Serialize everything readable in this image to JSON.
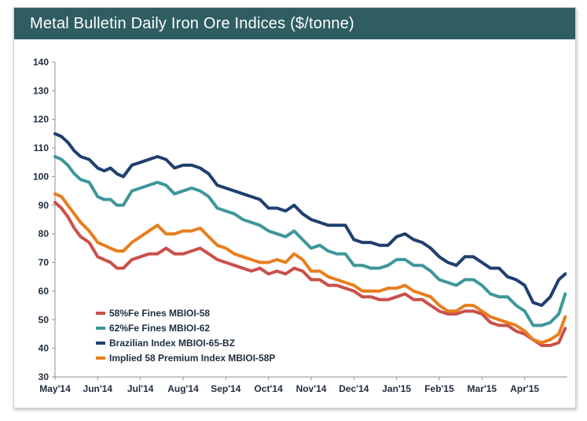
{
  "chart_data": {
    "type": "line",
    "title": "Metal Bulletin Daily Iron Ore Indices ($/tonne)",
    "xlabel": "",
    "ylabel": "",
    "ylim": [
      30,
      140
    ],
    "yticks": [
      30,
      40,
      50,
      60,
      70,
      80,
      90,
      100,
      110,
      120,
      130,
      140
    ],
    "xlim": [
      0,
      12.0
    ],
    "x_tick_labels": [
      "May'14",
      "Jun'14",
      "Jul'14",
      "Aug'14",
      "Sep'14",
      "Oct'14",
      "Nov'14",
      "Dec'14",
      "Jan'15",
      "Feb'15",
      "Mar'15",
      "Apr'15"
    ],
    "x_tick_positions": [
      0,
      1,
      2,
      3,
      4,
      5,
      6,
      7,
      8,
      9,
      10,
      11
    ],
    "grid": false,
    "legend_position": "bottom-left",
    "series": [
      {
        "name": "58%Fe Fines MBIOI-58",
        "color": "#c9504b",
        "x": [
          0,
          0.15,
          0.3,
          0.45,
          0.6,
          0.8,
          1.0,
          1.15,
          1.3,
          1.45,
          1.6,
          1.8,
          2.0,
          2.2,
          2.4,
          2.6,
          2.8,
          3.0,
          3.2,
          3.4,
          3.6,
          3.8,
          4.0,
          4.2,
          4.4,
          4.6,
          4.8,
          5.0,
          5.2,
          5.4,
          5.6,
          5.8,
          6.0,
          6.2,
          6.4,
          6.6,
          6.8,
          7.0,
          7.2,
          7.4,
          7.6,
          7.8,
          8.0,
          8.2,
          8.4,
          8.6,
          8.8,
          9.0,
          9.2,
          9.4,
          9.6,
          9.8,
          10.0,
          10.2,
          10.4,
          10.6,
          10.8,
          11.0,
          11.2,
          11.4,
          11.6,
          11.8,
          11.95
        ],
        "y": [
          91,
          89,
          86,
          82,
          79,
          77,
          72,
          71,
          70,
          68,
          68,
          71,
          72,
          73,
          73,
          75,
          73,
          73,
          74,
          75,
          73,
          71,
          70,
          69,
          68,
          67,
          68,
          66,
          67,
          66,
          68,
          67,
          64,
          64,
          62,
          62,
          61,
          60,
          58,
          58,
          57,
          57,
          58,
          59,
          57,
          57,
          55,
          53,
          52,
          52,
          53,
          53,
          52,
          49,
          48,
          48,
          46,
          45,
          43,
          41,
          41,
          42,
          47
        ]
      },
      {
        "name": "62%Fe Fines MBIOI-62",
        "color": "#3e979a",
        "x": [
          0,
          0.15,
          0.3,
          0.45,
          0.6,
          0.8,
          1.0,
          1.15,
          1.3,
          1.45,
          1.6,
          1.8,
          2.0,
          2.2,
          2.4,
          2.6,
          2.8,
          3.0,
          3.2,
          3.4,
          3.6,
          3.8,
          4.0,
          4.2,
          4.4,
          4.6,
          4.8,
          5.0,
          5.2,
          5.4,
          5.6,
          5.8,
          6.0,
          6.2,
          6.4,
          6.6,
          6.8,
          7.0,
          7.2,
          7.4,
          7.6,
          7.8,
          8.0,
          8.2,
          8.4,
          8.6,
          8.8,
          9.0,
          9.2,
          9.4,
          9.6,
          9.8,
          10.0,
          10.2,
          10.4,
          10.6,
          10.8,
          11.0,
          11.2,
          11.4,
          11.6,
          11.8,
          11.95
        ],
        "y": [
          107,
          106,
          104,
          101,
          99,
          98,
          93,
          92,
          92,
          90,
          90,
          95,
          96,
          97,
          98,
          97,
          94,
          95,
          96,
          95,
          93,
          89,
          88,
          87,
          85,
          84,
          83,
          81,
          80,
          79,
          81,
          78,
          75,
          76,
          74,
          73,
          73,
          69,
          69,
          68,
          68,
          69,
          71,
          71,
          69,
          69,
          67,
          64,
          63,
          62,
          64,
          64,
          62,
          59,
          58,
          58,
          55,
          53,
          48,
          48,
          49,
          52,
          59
        ]
      },
      {
        "name": "Brazilian Index MBIOI-65-BZ",
        "color": "#1f3f6e",
        "x": [
          0,
          0.15,
          0.3,
          0.45,
          0.6,
          0.8,
          1.0,
          1.15,
          1.3,
          1.45,
          1.6,
          1.8,
          2.0,
          2.2,
          2.4,
          2.6,
          2.8,
          3.0,
          3.2,
          3.4,
          3.6,
          3.8,
          4.0,
          4.2,
          4.4,
          4.6,
          4.8,
          5.0,
          5.2,
          5.4,
          5.6,
          5.8,
          6.0,
          6.2,
          6.4,
          6.6,
          6.8,
          7.0,
          7.2,
          7.4,
          7.6,
          7.8,
          8.0,
          8.2,
          8.4,
          8.6,
          8.8,
          9.0,
          9.2,
          9.4,
          9.6,
          9.8,
          10.0,
          10.2,
          10.4,
          10.6,
          10.8,
          11.0,
          11.2,
          11.4,
          11.6,
          11.8,
          11.95
        ],
        "y": [
          115,
          114,
          112,
          109,
          107,
          106,
          103,
          102,
          103,
          101,
          100,
          104,
          105,
          106,
          107,
          106,
          103,
          104,
          104,
          103,
          101,
          97,
          96,
          95,
          94,
          93,
          92,
          89,
          89,
          88,
          90,
          87,
          85,
          84,
          83,
          83,
          83,
          78,
          77,
          77,
          76,
          76,
          79,
          80,
          78,
          77,
          75,
          72,
          70,
          69,
          72,
          72,
          70,
          68,
          68,
          65,
          64,
          62,
          56,
          55,
          58,
          64,
          66
        ]
      },
      {
        "name": "Implied 58 Premium Index MBIOI-58P",
        "color": "#e87e1e",
        "x": [
          0,
          0.15,
          0.3,
          0.45,
          0.6,
          0.8,
          1.0,
          1.15,
          1.3,
          1.45,
          1.6,
          1.8,
          2.0,
          2.2,
          2.4,
          2.6,
          2.8,
          3.0,
          3.2,
          3.4,
          3.6,
          3.8,
          4.0,
          4.2,
          4.4,
          4.6,
          4.8,
          5.0,
          5.2,
          5.4,
          5.6,
          5.8,
          6.0,
          6.2,
          6.4,
          6.6,
          6.8,
          7.0,
          7.2,
          7.4,
          7.6,
          7.8,
          8.0,
          8.2,
          8.4,
          8.6,
          8.8,
          9.0,
          9.2,
          9.4,
          9.6,
          9.8,
          10.0,
          10.2,
          10.4,
          10.6,
          10.8,
          11.0,
          11.2,
          11.4,
          11.6,
          11.8,
          11.95
        ],
        "y": [
          94,
          93,
          90,
          87,
          84,
          81,
          77,
          76,
          75,
          74,
          74,
          77,
          79,
          81,
          83,
          80,
          80,
          81,
          81,
          82,
          79,
          76,
          75,
          73,
          72,
          71,
          70,
          70,
          71,
          70,
          73,
          71,
          67,
          67,
          65,
          64,
          63,
          62,
          60,
          60,
          60,
          61,
          61,
          62,
          60,
          59,
          58,
          55,
          53,
          53,
          55,
          55,
          53,
          51,
          50,
          49,
          48,
          46,
          43,
          42,
          43,
          45,
          51
        ]
      }
    ]
  }
}
